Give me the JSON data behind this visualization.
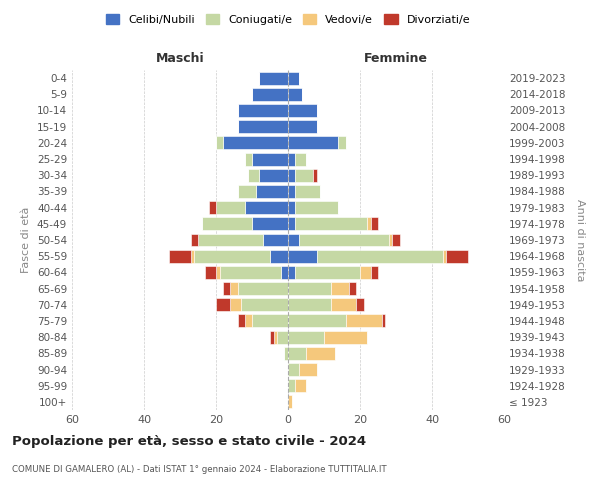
{
  "age_groups": [
    "100+",
    "95-99",
    "90-94",
    "85-89",
    "80-84",
    "75-79",
    "70-74",
    "65-69",
    "60-64",
    "55-59",
    "50-54",
    "45-49",
    "40-44",
    "35-39",
    "30-34",
    "25-29",
    "20-24",
    "15-19",
    "10-14",
    "5-9",
    "0-4"
  ],
  "birth_years": [
    "≤ 1923",
    "1924-1928",
    "1929-1933",
    "1934-1938",
    "1939-1943",
    "1944-1948",
    "1949-1953",
    "1954-1958",
    "1959-1963",
    "1964-1968",
    "1969-1973",
    "1974-1978",
    "1979-1983",
    "1984-1988",
    "1989-1993",
    "1994-1998",
    "1999-2003",
    "2004-2008",
    "2009-2013",
    "2014-2018",
    "2019-2023"
  ],
  "males": {
    "single": [
      0,
      0,
      0,
      0,
      0,
      0,
      0,
      0,
      2,
      5,
      7,
      10,
      12,
      9,
      8,
      10,
      18,
      14,
      14,
      10,
      8
    ],
    "married": [
      0,
      0,
      0,
      1,
      3,
      10,
      13,
      14,
      17,
      21,
      18,
      14,
      8,
      5,
      3,
      2,
      2,
      0,
      0,
      0,
      0
    ],
    "widowed": [
      0,
      0,
      0,
      0,
      1,
      2,
      3,
      2,
      1,
      1,
      0,
      0,
      0,
      0,
      0,
      0,
      0,
      0,
      0,
      0,
      0
    ],
    "divorced": [
      0,
      0,
      0,
      0,
      1,
      2,
      4,
      2,
      3,
      6,
      2,
      0,
      2,
      0,
      0,
      0,
      0,
      0,
      0,
      0,
      0
    ]
  },
  "females": {
    "single": [
      0,
      0,
      0,
      0,
      0,
      0,
      0,
      0,
      2,
      8,
      3,
      2,
      2,
      2,
      2,
      2,
      14,
      8,
      8,
      4,
      3
    ],
    "married": [
      0,
      2,
      3,
      5,
      10,
      16,
      12,
      12,
      18,
      35,
      25,
      20,
      12,
      7,
      5,
      3,
      2,
      0,
      0,
      0,
      0
    ],
    "widowed": [
      1,
      3,
      5,
      8,
      12,
      10,
      7,
      5,
      3,
      1,
      1,
      1,
      0,
      0,
      0,
      0,
      0,
      0,
      0,
      0,
      0
    ],
    "divorced": [
      0,
      0,
      0,
      0,
      0,
      1,
      2,
      2,
      2,
      6,
      2,
      2,
      0,
      0,
      1,
      0,
      0,
      0,
      0,
      0,
      0
    ]
  },
  "colors": {
    "single": "#4472C4",
    "married": "#c5d8a4",
    "widowed": "#f5c87c",
    "divorced": "#c0392b"
  },
  "legend_labels": [
    "Celibi/Nubili",
    "Coniugati/e",
    "Vedovi/e",
    "Divorziati/e"
  ],
  "title": "Popolazione per età, sesso e stato civile - 2024",
  "subtitle": "COMUNE DI GAMALERO (AL) - Dati ISTAT 1° gennaio 2024 - Elaborazione TUTTITALIA.IT",
  "xlabel_left": "Maschi",
  "xlabel_right": "Femmine",
  "ylabel_left": "Fasce di età",
  "ylabel_right": "Anni di nascita",
  "xlim": 60,
  "background_color": "#ffffff"
}
